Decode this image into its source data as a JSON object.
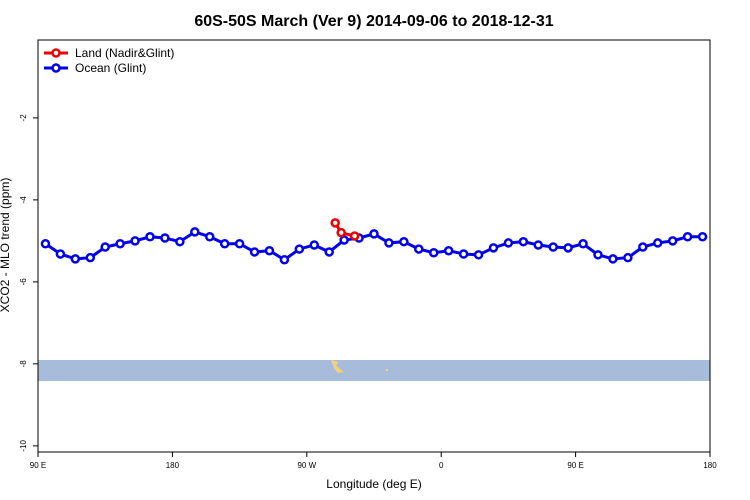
{
  "chart_data": {
    "type": "line",
    "title": "60S-50S March (Ver 9)   2014-09-06 to 2018-12-31",
    "x_label": "Longitude (deg E)",
    "y_label": "XCO2 - MLO trend (ppm)",
    "xlim": [
      90,
      540
    ],
    "ylim": [
      -10.15,
      -0.1
    ],
    "xticks": [
      {
        "value": 90,
        "label": "90 E"
      },
      {
        "value": 180,
        "label": "180"
      },
      {
        "value": 270,
        "label": "90 W"
      },
      {
        "value": 360,
        "label": "0"
      },
      {
        "value": 450,
        "label": "90 E"
      },
      {
        "value": 540,
        "label": "180"
      }
    ],
    "yticks": [
      -2,
      -4,
      -6,
      -8,
      -10
    ],
    "legend": "top-left",
    "series": [
      {
        "name": "Land (Nadir&Glint)",
        "color": "#ee0000",
        "x": [
          289,
          293,
          302
        ],
        "values": [
          -4.56,
          -4.8,
          -4.88
        ]
      },
      {
        "name": "Ocean (Glint)",
        "color": "#0000ee",
        "x": [
          95,
          105,
          115,
          125,
          135,
          145,
          155,
          165,
          175,
          185,
          195,
          205,
          215,
          225,
          235,
          245,
          255,
          265,
          275,
          285,
          295,
          305,
          315,
          325,
          335,
          345,
          355,
          365,
          375,
          385,
          395,
          405,
          415,
          425,
          435,
          445,
          455,
          465,
          475,
          485,
          495,
          505,
          515,
          525,
          535
        ],
        "values": [
          -5.07,
          -5.32,
          -5.44,
          -5.41,
          -5.15,
          -5.07,
          -5.0,
          -4.9,
          -4.93,
          -5.02,
          -4.78,
          -4.9,
          -5.07,
          -5.07,
          -5.27,
          -5.24,
          -5.46,
          -5.2,
          -5.1,
          -5.27,
          -4.98,
          -4.93,
          -4.83,
          -5.05,
          -5.02,
          -5.2,
          -5.29,
          -5.24,
          -5.32,
          -5.34,
          -5.17,
          -5.05,
          -5.02,
          -5.1,
          -5.15,
          -5.17,
          -5.07,
          -5.34,
          -5.44,
          -5.41,
          -5.15,
          -5.05,
          -5.0,
          -4.9,
          -4.9
        ]
      }
    ]
  }
}
